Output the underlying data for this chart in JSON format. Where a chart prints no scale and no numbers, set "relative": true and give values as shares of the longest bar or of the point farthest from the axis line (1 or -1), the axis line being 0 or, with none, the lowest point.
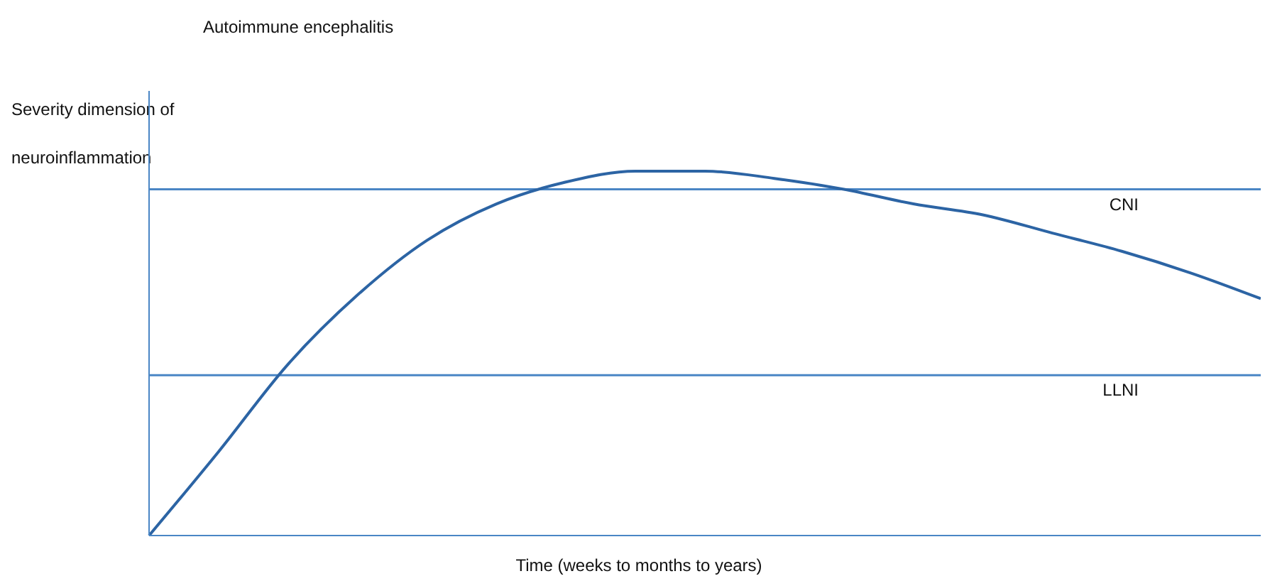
{
  "chart_data": {
    "type": "line",
    "title": "Autoimmune encephalitis",
    "ylabel": "Severity dimension of neuroinflammation",
    "xlabel": "Time (weeks to months to years)",
    "relative": true,
    "marker": "none",
    "categories": [
      null,
      null,
      null,
      null,
      null,
      null,
      null,
      null,
      null,
      null,
      null,
      null,
      null,
      null,
      null,
      null,
      null
    ],
    "series": [
      {
        "color": "#2c64a4",
        "values": [
          0,
          0.23,
          0.47,
          0.66,
          0.81,
          0.91,
          0.97,
          1.0,
          1.0,
          0.98,
          0.95,
          0.91,
          0.88,
          0.83,
          0.78,
          0.72,
          0.65
        ]
      }
    ],
    "ref_lines": [
      {
        "axis": "y",
        "value": 0.95,
        "label": "CNI",
        "color": "#4a86c5"
      },
      {
        "axis": "y",
        "value": 0.44,
        "label": "LLNI",
        "color": "#4a86c5"
      }
    ]
  }
}
